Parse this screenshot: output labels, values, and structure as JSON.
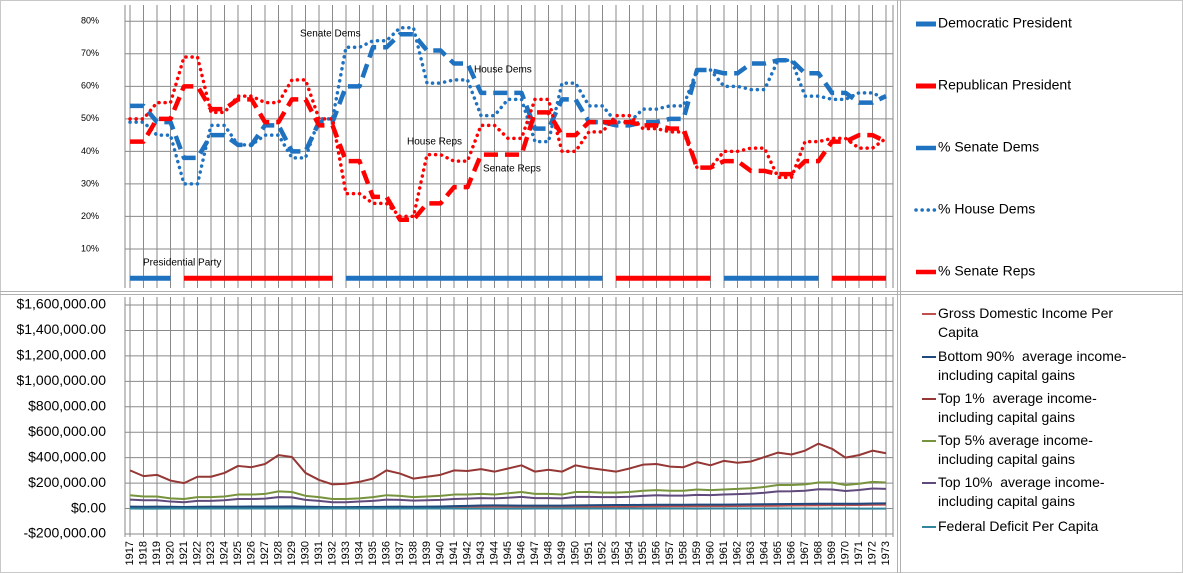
{
  "chart_data": [
    {
      "type": "line",
      "ylim": [
        -2,
        85
      ],
      "yticks": [
        {
          "value": 10,
          "label": "10%"
        },
        {
          "value": 20,
          "label": "20%"
        },
        {
          "value": 30,
          "label": "30%"
        },
        {
          "value": 40,
          "label": "40%"
        },
        {
          "value": 50,
          "label": "50%"
        },
        {
          "value": 60,
          "label": "60%"
        },
        {
          "value": 70,
          "label": "70%"
        },
        {
          "value": 80,
          "label": "80%"
        }
      ],
      "grid": true,
      "annotations": [
        "Senate Dems",
        "House Dems",
        "House Reps",
        "Senate Reps",
        "Presidential Party"
      ],
      "series": [
        {
          "name": "Democratic President",
          "color": "#1f72c0",
          "style": "solid",
          "values": [
            1,
            1,
            1,
            1,
            null,
            null,
            null,
            null,
            null,
            null,
            null,
            null,
            null,
            null,
            null,
            null,
            1,
            1,
            1,
            1,
            1,
            1,
            1,
            1,
            1,
            1,
            1,
            1,
            1,
            1,
            1,
            1,
            1,
            1,
            1,
            1,
            null,
            null,
            null,
            null,
            null,
            null,
            null,
            null,
            1,
            1,
            1,
            1,
            1,
            1,
            1,
            1,
            null,
            null,
            null,
            null,
            null
          ]
        },
        {
          "name": "Republican President",
          "color": "#ff0000",
          "style": "solid",
          "values": [
            null,
            null,
            null,
            null,
            1,
            1,
            1,
            1,
            1,
            1,
            1,
            1,
            1,
            1,
            1,
            1,
            null,
            null,
            null,
            null,
            null,
            null,
            null,
            null,
            null,
            null,
            null,
            null,
            null,
            null,
            null,
            null,
            null,
            null,
            null,
            null,
            1,
            1,
            1,
            1,
            1,
            1,
            1,
            1,
            null,
            null,
            null,
            null,
            null,
            null,
            null,
            null,
            1,
            1,
            1,
            1,
            1
          ]
        },
        {
          "name": "% Senate Dems",
          "color": "#1f72c0",
          "style": "dashed",
          "values": [
            54,
            54,
            49,
            49,
            38,
            38,
            45,
            45,
            42,
            42,
            48,
            48,
            40,
            40,
            49,
            49,
            60,
            60,
            72,
            72,
            76,
            76,
            71,
            71,
            67,
            67,
            58,
            58,
            58,
            58,
            47,
            47,
            56,
            56,
            49,
            49,
            48,
            48,
            49,
            49,
            50,
            50,
            65,
            65,
            64,
            64,
            67,
            67,
            68,
            68,
            64,
            64,
            58,
            58,
            55,
            55,
            57
          ]
        },
        {
          "name": "% House Dems",
          "color": "#1f72c0",
          "style": "dotted",
          "values": [
            49,
            49,
            45,
            45,
            30,
            30,
            48,
            48,
            42,
            42,
            45,
            45,
            38,
            38,
            50,
            50,
            72,
            72,
            74,
            74,
            78,
            78,
            61,
            61,
            62,
            62,
            51,
            51,
            56,
            56,
            43,
            43,
            61,
            61,
            54,
            54,
            49,
            49,
            53,
            53,
            54,
            54,
            65,
            65,
            60,
            60,
            59,
            59,
            68,
            68,
            57,
            57,
            56,
            56,
            58,
            58,
            56
          ]
        },
        {
          "name": "% Senate Reps",
          "color": "#ff0000",
          "style": "dashed",
          "values": [
            43,
            43,
            50,
            50,
            60,
            60,
            53,
            53,
            56,
            56,
            49,
            49,
            56,
            56,
            48,
            48,
            37,
            37,
            26,
            26,
            19,
            19,
            24,
            24,
            29,
            29,
            39,
            39,
            39,
            39,
            52,
            52,
            45,
            45,
            49,
            49,
            49,
            49,
            48,
            48,
            47,
            47,
            35,
            35,
            37,
            37,
            34,
            34,
            33,
            33,
            37,
            37,
            43,
            43,
            45,
            45,
            43
          ]
        },
        {
          "color": "#ff0000",
          "style": "dotted",
          "values": [
            50,
            50,
            55,
            55,
            69,
            69,
            52,
            52,
            57,
            57,
            55,
            55,
            62,
            62,
            50,
            50,
            27,
            27,
            24,
            24,
            20,
            20,
            39,
            39,
            37,
            37,
            48,
            48,
            44,
            44,
            56,
            56,
            40,
            40,
            46,
            46,
            51,
            51,
            47,
            47,
            46,
            46,
            35,
            35,
            40,
            40,
            41,
            41,
            32,
            32,
            43,
            43,
            44,
            44,
            41,
            41,
            44
          ]
        }
      ]
    },
    {
      "type": "line",
      "categories": [
        "1917",
        "1918",
        "1919",
        "1920",
        "1921",
        "1922",
        "1923",
        "1924",
        "1925",
        "1926",
        "1927",
        "1928",
        "1929",
        "1930",
        "1931",
        "1932",
        "1933",
        "1934",
        "1935",
        "1936",
        "1937",
        "1938",
        "1939",
        "1940",
        "1941",
        "1942",
        "1943",
        "1944",
        "1945",
        "1946",
        "1947",
        "1948",
        "1949",
        "1950",
        "1951",
        "1952",
        "1953",
        "1954",
        "1955",
        "1956",
        "1957",
        "1958",
        "1959",
        "1960",
        "1961",
        "1962",
        "1963",
        "1964",
        "1965",
        "1966",
        "1967",
        "1968",
        "1969",
        "1970",
        "1971",
        "1972",
        "1973"
      ],
      "ylim": [
        -200000,
        1600000
      ],
      "yticks": [
        {
          "value": -200000,
          "label": "-$200,000.00"
        },
        {
          "value": 0,
          "label": "$0.00"
        },
        {
          "value": 200000,
          "label": "$200,000.00"
        },
        {
          "value": 400000,
          "label": "$400,000.00"
        },
        {
          "value": 600000,
          "label": "$600,000.00"
        },
        {
          "value": 800000,
          "label": "$800,000.00"
        },
        {
          "value": 1000000,
          "label": "$1,000,000.00"
        },
        {
          "value": 1200000,
          "label": "$1,200,000.00"
        },
        {
          "value": 1400000,
          "label": "$1,400,000.00"
        },
        {
          "value": 1600000,
          "label": "$1,600,000.00"
        }
      ],
      "grid": true,
      "series": [
        {
          "name": "Gross Domestic Income Per Capita",
          "color": "#c0504d",
          "values": [
            8000,
            9000,
            9000,
            9000,
            7000,
            7000,
            8000,
            8000,
            9000,
            9000,
            9000,
            9000,
            10000,
            9000,
            7000,
            6000,
            6000,
            6000,
            7000,
            8000,
            8000,
            8000,
            8000,
            9000,
            11000,
            13000,
            14000,
            15000,
            14000,
            13000,
            13000,
            13000,
            13000,
            14000,
            15000,
            15000,
            16000,
            16000,
            17000,
            17000,
            18000,
            18000,
            18000,
            19000,
            19000,
            20000,
            21000,
            21000,
            22000,
            24000,
            25000,
            26000,
            27000,
            27000,
            28000,
            30000,
            31000
          ]
        },
        {
          "name": "Bottom 90%  average income-including capital gains",
          "color": "#1f497d",
          "values": [
            15000,
            14000,
            15000,
            14000,
            12000,
            14000,
            15000,
            15000,
            15000,
            16000,
            16000,
            16000,
            17000,
            15000,
            13000,
            11000,
            11000,
            12000,
            13000,
            14000,
            15000,
            14000,
            15000,
            16000,
            19000,
            21000,
            24000,
            25000,
            24000,
            23000,
            23000,
            23000,
            23000,
            25000,
            26000,
            27000,
            28000,
            28000,
            29000,
            30000,
            30000,
            30000,
            31000,
            31000,
            31000,
            32000,
            33000,
            34000,
            35000,
            36000,
            37000,
            38000,
            38000,
            38000,
            38000,
            40000,
            41000
          ]
        },
        {
          "name": "Top 1%  average income-including capital gains",
          "color": "#953735",
          "values": [
            300000,
            255000,
            265000,
            220000,
            200000,
            250000,
            250000,
            280000,
            335000,
            325000,
            350000,
            420000,
            405000,
            280000,
            225000,
            190000,
            195000,
            210000,
            235000,
            300000,
            275000,
            235000,
            250000,
            265000,
            300000,
            295000,
            310000,
            290000,
            315000,
            340000,
            290000,
            305000,
            290000,
            340000,
            320000,
            305000,
            290000,
            315000,
            345000,
            350000,
            330000,
            325000,
            365000,
            340000,
            375000,
            360000,
            370000,
            405000,
            440000,
            425000,
            455000,
            510000,
            470000,
            400000,
            420000,
            455000,
            435000
          ]
        },
        {
          "name": "Top 5% average income-including capital gains",
          "color": "#77933c",
          "values": [
            105000,
            95000,
            95000,
            80000,
            75000,
            90000,
            90000,
            95000,
            110000,
            110000,
            115000,
            135000,
            130000,
            100000,
            90000,
            75000,
            75000,
            80000,
            90000,
            105000,
            100000,
            90000,
            95000,
            100000,
            110000,
            110000,
            115000,
            110000,
            120000,
            130000,
            115000,
            115000,
            110000,
            130000,
            130000,
            125000,
            125000,
            130000,
            140000,
            145000,
            140000,
            140000,
            150000,
            145000,
            150000,
            155000,
            160000,
            170000,
            185000,
            185000,
            190000,
            205000,
            205000,
            185000,
            195000,
            210000,
            205000
          ]
        },
        {
          "name": "Top 10%  average income-including capital gains",
          "color": "#604a7b",
          "values": [
            70000,
            65000,
            65000,
            55000,
            50000,
            60000,
            60000,
            65000,
            75000,
            75000,
            78000,
            90000,
            88000,
            68000,
            60000,
            50000,
            50000,
            55000,
            60000,
            70000,
            68000,
            62000,
            65000,
            68000,
            75000,
            78000,
            82000,
            80000,
            85000,
            92000,
            82000,
            82000,
            80000,
            92000,
            92000,
            90000,
            90000,
            93000,
            100000,
            105000,
            102000,
            102000,
            108000,
            106000,
            110000,
            113000,
            117000,
            124000,
            135000,
            136000,
            140000,
            152000,
            150000,
            138000,
            146000,
            158000,
            155000
          ]
        },
        {
          "name": "Federal Deficit Per Capita",
          "color": "#31859c",
          "values": [
            -10,
            -90,
            -125,
            3,
            5,
            7,
            7,
            9,
            6,
            8,
            9,
            8,
            6,
            6,
            -4,
            -22,
            -21,
            -29,
            -23,
            -34,
            -20,
            -1,
            -21,
            -22,
            -36,
            -152,
            -396,
            -359,
            -339,
            -113,
            28,
            82,
            4,
            -21,
            39,
            -9,
            -41,
            -7,
            -18,
            24,
            20,
            -16,
            -73,
            2,
            -18,
            -38,
            -25,
            -30,
            -7,
            -19,
            -43,
            -126,
            16,
            -14,
            -112,
            -111,
            -70
          ]
        }
      ]
    }
  ]
}
